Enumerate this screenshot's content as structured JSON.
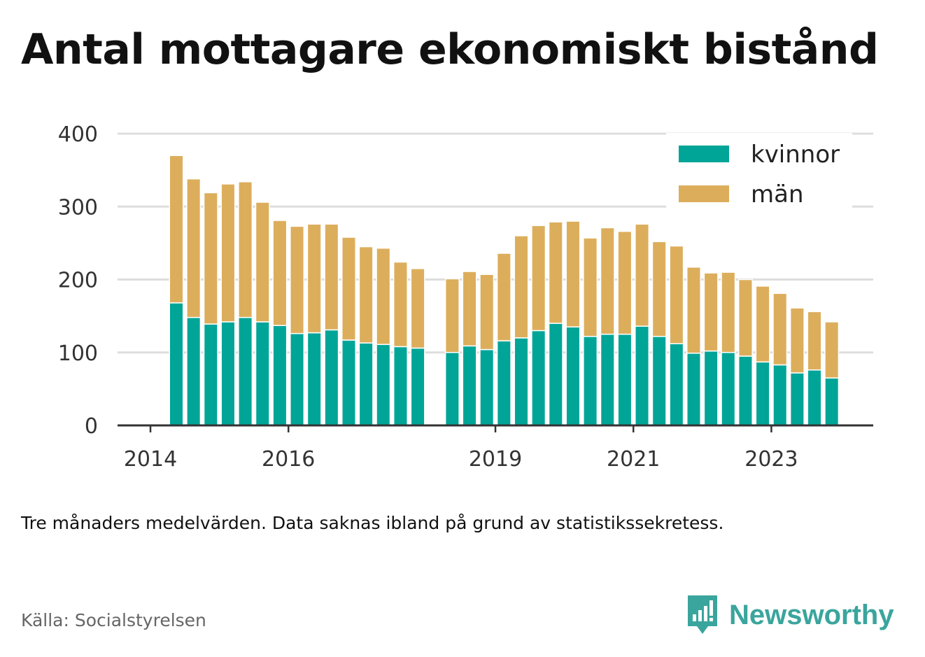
{
  "title": "Antal mottagare ekonomiskt bistånd",
  "note": "Tre månaders medelvärden. Data saknas ibland på grund av statistikssekretess.",
  "source": "Källa: Socialstyrelsen",
  "brand": {
    "name": "Newsworthy",
    "icon": "newsworthy-logo-icon"
  },
  "colors": {
    "kvinnor": "#00a598",
    "man": "#dcae5c",
    "grid": "#dddddd",
    "axis": "#333333",
    "text": "#333333"
  },
  "chart_data": {
    "type": "bar",
    "stacked": true,
    "ylim": [
      0,
      400
    ],
    "yticks": [
      0,
      100,
      200,
      300,
      400
    ],
    "xtick_labels": [
      {
        "label": "2014",
        "index": -1
      },
      {
        "label": "2016",
        "index": 7
      },
      {
        "label": "2019",
        "index": 19
      },
      {
        "label": "2021",
        "index": 27
      },
      {
        "label": "2023",
        "index": 35
      }
    ],
    "legend_position": "top-right",
    "grid": true,
    "series": [
      {
        "name": "kvinnor",
        "color": "#00a598",
        "values": [
          168,
          148,
          139,
          142,
          148,
          142,
          137,
          126,
          127,
          131,
          117,
          113,
          111,
          108,
          106,
          null,
          100,
          109,
          104,
          116,
          120,
          130,
          140,
          135,
          122,
          125,
          125,
          136,
          122,
          112,
          99,
          102,
          100,
          95,
          87,
          83,
          72,
          76,
          65
        ]
      },
      {
        "name": "män",
        "color": "#dcae5c",
        "values": [
          202,
          190,
          180,
          189,
          186,
          164,
          144,
          147,
          149,
          145,
          141,
          132,
          132,
          116,
          109,
          null,
          101,
          102,
          103,
          120,
          140,
          144,
          139,
          145,
          135,
          146,
          141,
          140,
          130,
          134,
          118,
          107,
          110,
          105,
          104,
          98,
          89,
          80,
          77
        ]
      }
    ]
  }
}
